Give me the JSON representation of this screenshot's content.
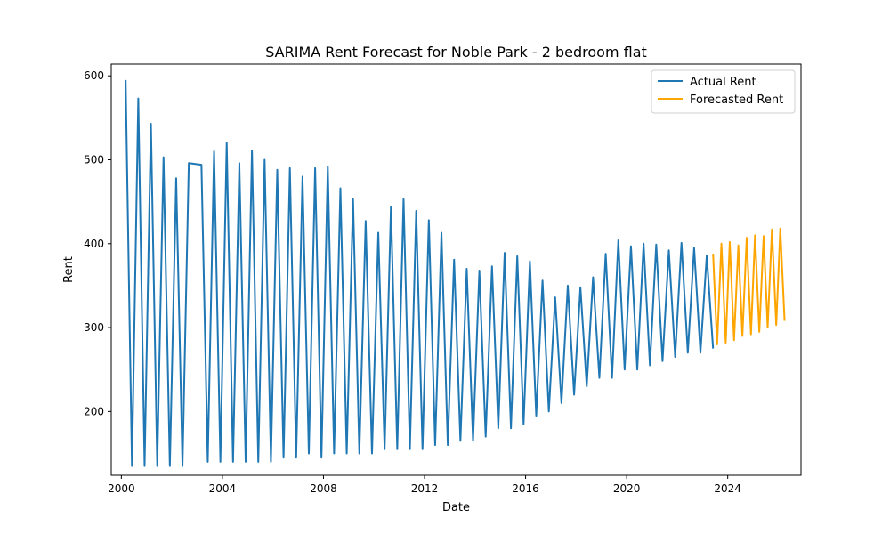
{
  "chart_data": {
    "type": "line",
    "title": "SARIMA Rent Forecast for Noble Park - 2 bedroom flat",
    "xlabel": "Date",
    "ylabel": "Rent",
    "xlim": [
      1999.6,
      2026.9
    ],
    "ylim": [
      124,
      614
    ],
    "xticks": [
      2000,
      2004,
      2008,
      2012,
      2016,
      2020,
      2024
    ],
    "yticks": [
      200,
      300,
      400,
      500,
      600
    ],
    "grid": false,
    "legend_position": "top-right",
    "series": [
      {
        "name": "Actual Rent",
        "color": "#1f77b4",
        "x": [
          2000.17,
          2000.42,
          2000.67,
          2000.92,
          2001.17,
          2001.42,
          2001.67,
          2001.92,
          2002.17,
          2002.42,
          2002.67,
          2003.17,
          2003.42,
          2003.67,
          2003.92,
          2004.17,
          2004.42,
          2004.67,
          2004.92,
          2005.17,
          2005.42,
          2005.67,
          2005.92,
          2006.17,
          2006.42,
          2006.67,
          2006.92,
          2007.17,
          2007.42,
          2007.67,
          2007.92,
          2008.17,
          2008.42,
          2008.67,
          2008.92,
          2009.17,
          2009.42,
          2009.67,
          2009.92,
          2010.17,
          2010.42,
          2010.67,
          2010.92,
          2011.17,
          2011.42,
          2011.67,
          2011.92,
          2012.17,
          2012.42,
          2012.67,
          2012.92,
          2013.17,
          2013.42,
          2013.67,
          2013.92,
          2014.17,
          2014.42,
          2014.67,
          2014.92,
          2015.17,
          2015.42,
          2015.67,
          2015.92,
          2016.17,
          2016.42,
          2016.67,
          2016.92,
          2017.17,
          2017.42,
          2017.67,
          2017.92,
          2018.17,
          2018.42,
          2018.67,
          2018.92,
          2019.17,
          2019.42,
          2019.67,
          2019.92,
          2020.17,
          2020.42,
          2020.67,
          2020.92,
          2021.17,
          2021.42,
          2021.67,
          2021.92,
          2022.17,
          2022.42,
          2022.67,
          2022.92,
          2023.17,
          2023.42
        ],
        "values": [
          595,
          135,
          573,
          135,
          543,
          135,
          503,
          135,
          478,
          135,
          496,
          494,
          140,
          510,
          140,
          520,
          140,
          496,
          140,
          511,
          140,
          500,
          140,
          488,
          145,
          490,
          145,
          480,
          150,
          490,
          145,
          492,
          150,
          466,
          150,
          453,
          150,
          427,
          150,
          413,
          155,
          444,
          155,
          453,
          155,
          439,
          155,
          428,
          160,
          413,
          160,
          381,
          165,
          370,
          165,
          368,
          170,
          373,
          180,
          389,
          180,
          385,
          185,
          379,
          195,
          356,
          200,
          336,
          210,
          350,
          220,
          348,
          230,
          360,
          240,
          388,
          240,
          404,
          250,
          397,
          250,
          400,
          255,
          399,
          260,
          392,
          265,
          401,
          270,
          395,
          270,
          386,
          275
        ]
      },
      {
        "name": "Forecasted Rent",
        "color": "#ffa500",
        "x": [
          2023.42,
          2023.58,
          2023.75,
          2023.92,
          2024.08,
          2024.25,
          2024.42,
          2024.58,
          2024.75,
          2024.92,
          2025.08,
          2025.25,
          2025.42,
          2025.58,
          2025.75,
          2025.92,
          2026.08,
          2026.25
        ],
        "values": [
          388,
          280,
          400,
          282,
          402,
          285,
          398,
          290,
          407,
          292,
          410,
          295,
          409,
          300,
          417,
          303,
          418,
          308
        ]
      }
    ]
  }
}
